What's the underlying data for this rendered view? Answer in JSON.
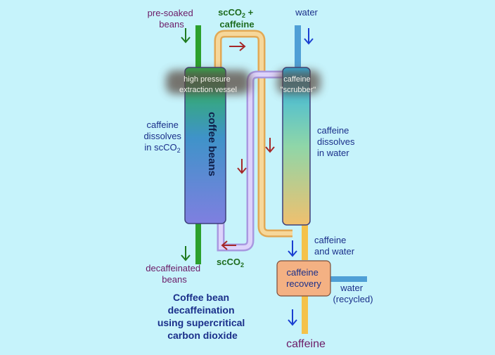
{
  "diagram": {
    "labels": {
      "pre_soaked_line1": "pre-soaked",
      "pre_soaked_line2": "beans",
      "scco2_caffeine_line1": "scCO",
      "scco2_caffeine_sub": "2",
      "scco2_caffeine_plus": " +",
      "scco2_caffeine_line2": "caffeine",
      "water_in": "water",
      "high_pressure_line1": "high pressure",
      "high_pressure_line2": "extraction vessel",
      "coffee_beans": "coffee beans",
      "scrubber_line1": "caffeine",
      "scrubber_line2": "\"scrubber\"",
      "dissolves_co2_line1": "caffeine",
      "dissolves_co2_line2": "dissolves",
      "dissolves_co2_line3": "in scCO",
      "dissolves_co2_sub": "2",
      "dissolves_water_line1": "caffeine",
      "dissolves_water_line2": "dissolves",
      "dissolves_water_line3": "in water",
      "caffeine_and_water_line1": "caffeine",
      "caffeine_and_water_line2": "and water",
      "scco2_return": "scCO",
      "scco2_return_sub": "2",
      "decaf_line1": "decaffeinated",
      "decaf_line2": "beans",
      "recovery_line1": "caffeine",
      "recovery_line2": "recovery",
      "water_recycled_line1": "water",
      "water_recycled_line2": "(recycled)",
      "caffeine_out": "caffeine"
    },
    "caption": {
      "line1": "Coffee bean",
      "line2": "decaffeination",
      "line3": "using supercritical",
      "line4": "carbon dioxide"
    },
    "colors": {
      "background": "#c6f3fb",
      "co2_pipe": "#f2c77e",
      "co2_return_pipe": "#c7b8f0",
      "water_pipe": "#f4c24a",
      "recycled_water_pipe": "#4f9fd6",
      "bean_rod": "#2ca02c",
      "arrow_red": "#a52828",
      "arrow_blue": "#1a3fd1",
      "arrow_green": "#1f7a1f",
      "label_purple": "#6b1a66",
      "label_navy": "#1a2f8a",
      "label_green": "#1d6b1d",
      "recovery_box": "#f4b183"
    }
  }
}
